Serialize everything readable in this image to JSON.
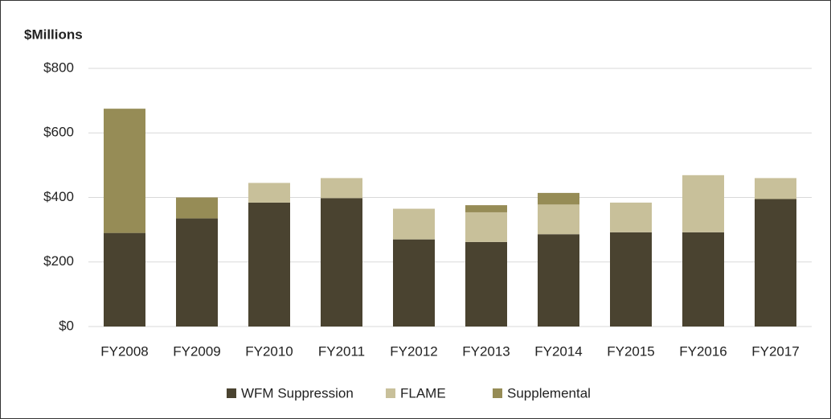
{
  "chart_data": {
    "type": "stacked_bar",
    "title": "$Millions",
    "categories": [
      "FY2008",
      "FY2009",
      "FY2010",
      "FY2011",
      "FY2012",
      "FY2013",
      "FY2014",
      "FY2015",
      "FY2016",
      "FY2017"
    ],
    "series": [
      {
        "name": "WFM Suppression",
        "color": "#4a4330",
        "values": [
          290,
          335,
          384,
          398,
          270,
          262,
          286,
          292,
          292,
          395
        ]
      },
      {
        "name": "FLAME",
        "color": "#c8c09a",
        "values": [
          0,
          0,
          61,
          62,
          95,
          92,
          92,
          92,
          177,
          65
        ]
      },
      {
        "name": "Supplemental",
        "color": "#968c56",
        "values": [
          385,
          65,
          0,
          0,
          0,
          22,
          36,
          0,
          0,
          0
        ]
      }
    ],
    "ylim": [
      0,
      800
    ],
    "yticks": [
      {
        "value": 0,
        "label": "$0"
      },
      {
        "value": 200,
        "label": "$200"
      },
      {
        "value": 400,
        "label": "$400"
      },
      {
        "value": 600,
        "label": "$600"
      },
      {
        "value": 800,
        "label": "$800"
      }
    ],
    "grid": true,
    "legend": "bottom"
  }
}
